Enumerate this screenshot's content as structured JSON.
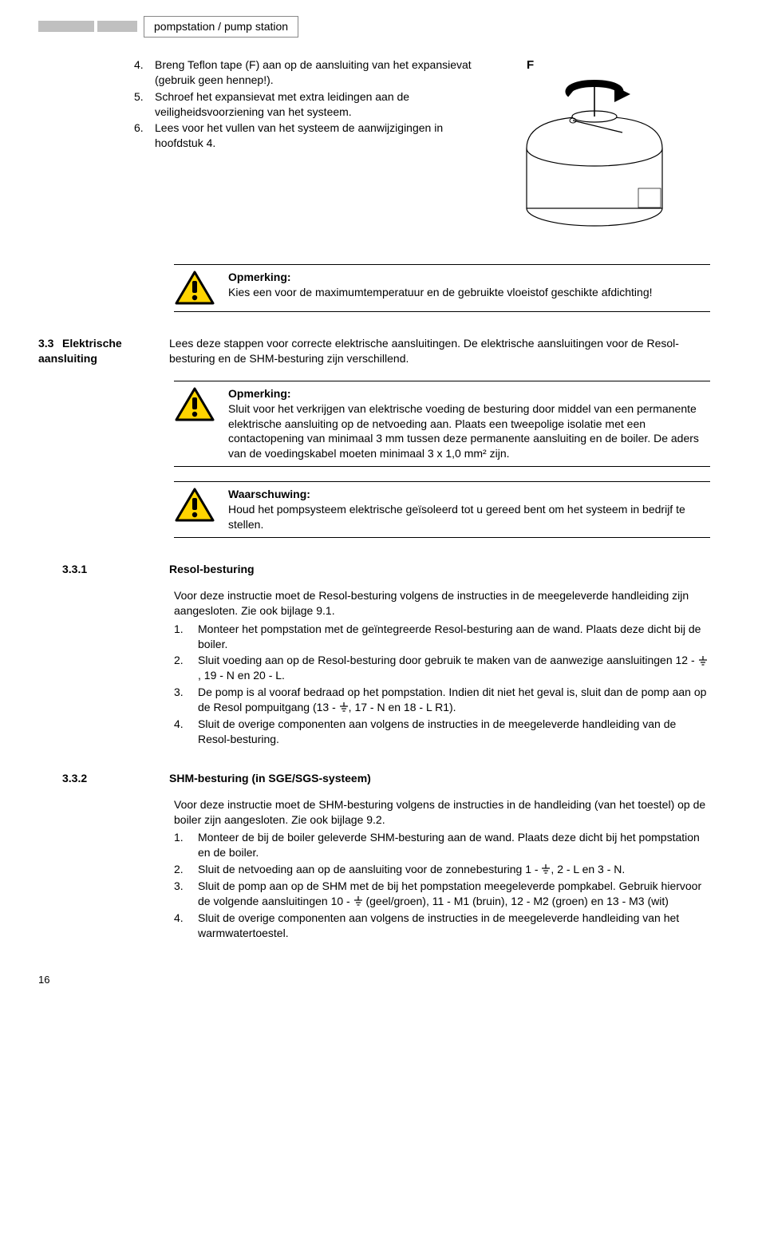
{
  "header": {
    "title": "pompstation / pump station"
  },
  "figure": {
    "label": "F",
    "vessel_body_fill": "#ffffff",
    "vessel_stroke": "#000000",
    "arrow_fill": "#000000"
  },
  "steps": [
    {
      "n": "4.",
      "t": "Breng Teflon tape (F) aan op de aansluiting van het expansievat (gebruik geen hennep!)."
    },
    {
      "n": "5.",
      "t": "Schroef het expansievat met extra leidingen aan de veiligheidsvoorziening van het systeem."
    },
    {
      "n": "6.",
      "t": "Lees voor het vullen van het systeem de aanwijzigingen in hoofdstuk 4."
    }
  ],
  "note1": {
    "title": "Opmerking:",
    "body": "Kies een voor de maximumtemperatuur en de gebruikte vloeistof geschikte afdichting!"
  },
  "section33": {
    "num": "3.3",
    "label": "Elektrische aansluiting",
    "intro": "Lees deze stappen voor correcte elektrische aansluitingen. De elektrische aansluitingen voor de Resol-besturing en de SHM-besturing zijn verschillend."
  },
  "note2": {
    "title": "Opmerking:",
    "body": "Sluit voor het verkrijgen van elektrische voeding de besturing door middel van een permanente elektrische aansluiting op de netvoeding aan. Plaats een tweepolige isolatie met een contactopening van minimaal 3 mm tussen deze permanente aansluiting en de boiler. De aders van de voedingskabel moeten minimaal 3 x 1,0 mm² zijn."
  },
  "note3": {
    "title": "Waarschuwing:",
    "body": "Houd het pompsysteem elektrische geïsoleerd tot u gereed bent om het systeem in bedrijf te stellen."
  },
  "section331": {
    "num": "3.3.1",
    "title": "Resol-besturing",
    "intro": "Voor deze instructie moet de Resol-besturing volgens de instructies in de meegeleverde handleiding zijn aangesloten. Zie ook bijlage 9.1.",
    "items": [
      {
        "n": "1.",
        "t": "Monteer het pompstation met de geïntegreerde Resol-besturing aan de wand. Plaats deze dicht bij de boiler."
      },
      {
        "n": "2.",
        "pre": "Sluit voeding aan op de Resol-besturing door gebruik te maken van de aanwezige aansluitingen 12 - ",
        "mid": ", 19 - N en 20 - L."
      },
      {
        "n": "3.",
        "pre": "De pomp is al vooraf bedraad op het pompstation. Indien dit niet het geval is, sluit dan de pomp aan op de Resol pompuitgang (13 - ",
        "mid": ", 17 - N en 18 - L R1)."
      },
      {
        "n": "4.",
        "t": "Sluit de overige componenten aan volgens de instructies in de meegeleverde handleiding van de Resol-besturing."
      }
    ]
  },
  "section332": {
    "num": "3.3.2",
    "title": "SHM-besturing (in SGE/SGS-systeem)",
    "intro": "Voor deze instructie moet de SHM-besturing volgens de instructies in de handleiding (van het toestel) op de boiler zijn aangesloten. Zie ook bijlage 9.2.",
    "items": [
      {
        "n": "1.",
        "t": "Monteer de bij de boiler geleverde SHM-besturing aan de wand. Plaats deze dicht bij het pompstation en de boiler."
      },
      {
        "n": "2.",
        "pre": "Sluit de netvoeding aan op de aansluiting voor de zonnebesturing 1 - ",
        "mid": ", 2 - L en 3 - N."
      },
      {
        "n": "3.",
        "pre": "Sluit de pomp aan op de SHM met de bij het pompstation meegeleverde pompkabel. Gebruik hiervoor de volgende aansluitingen 10 - ",
        "mid": " (geel/groen), 11 - M1 (bruin), 12 - M2 (groen) en 13 - M3 (wit)"
      },
      {
        "n": "4.",
        "t": "Sluit de overige componenten aan volgens de instructies in de meegeleverde handleiding van het warmwatertoestel."
      }
    ]
  },
  "page_number": "16",
  "icon_colors": {
    "triangle_fill": "#ffd400",
    "triangle_stroke": "#000000"
  }
}
